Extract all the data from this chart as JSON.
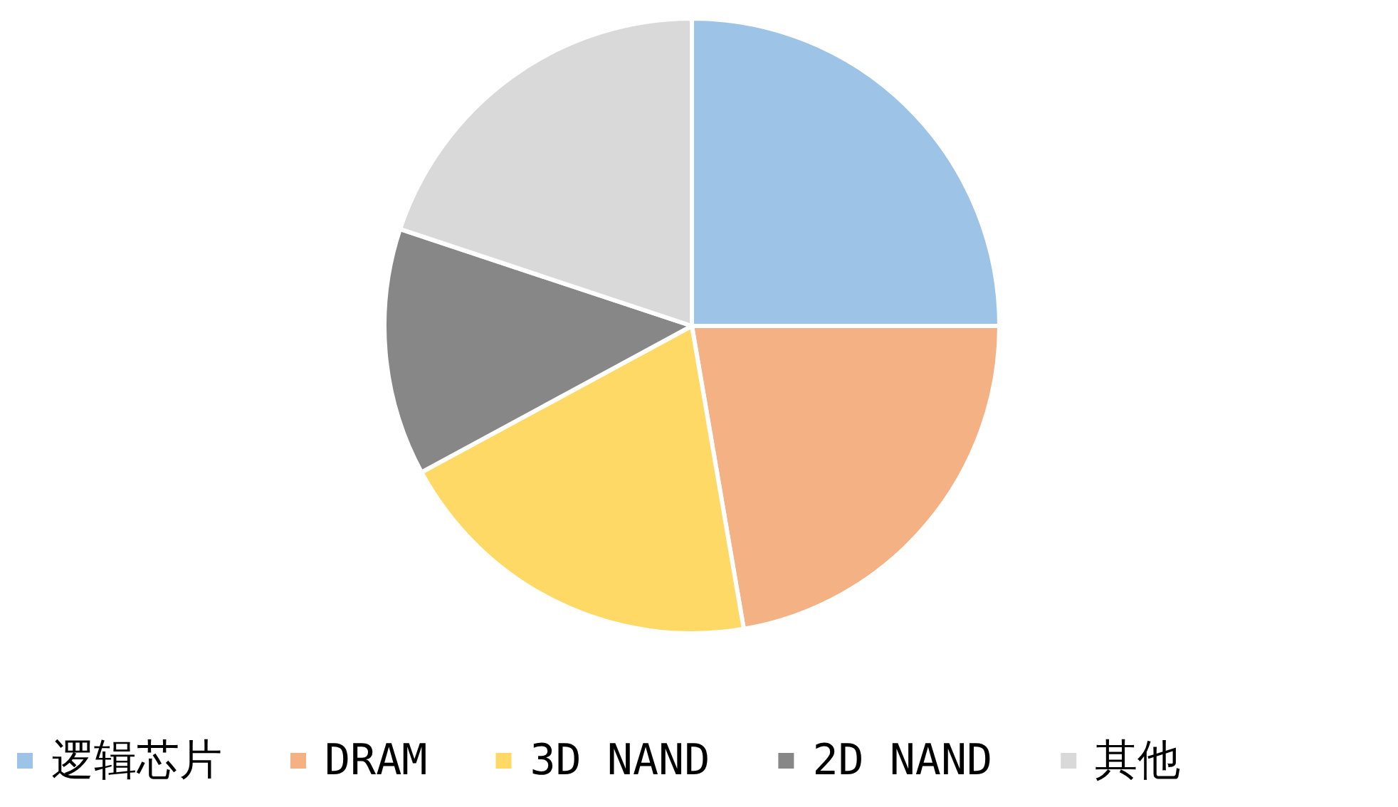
{
  "chart_data": {
    "type": "pie",
    "categories": [
      "逻辑芯片",
      "DRAM",
      "3D NAND",
      "2D NAND",
      "其他"
    ],
    "values": [
      25,
      22.3,
      19.8,
      13,
      19.9
    ],
    "colors": [
      "#9dc3e6",
      "#f4b183",
      "#ffd966",
      "#878787",
      "#d9d9d9"
    ],
    "legend": "bottom"
  }
}
